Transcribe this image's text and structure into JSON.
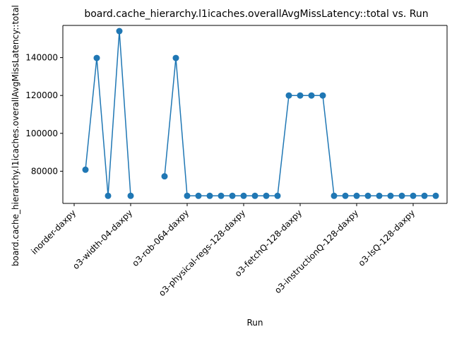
{
  "chart_data": {
    "type": "line",
    "title": "board.cache_hierarchy.l1icaches.overallAvgMissLatency::total vs. Run",
    "xlabel": "Run",
    "ylabel": "board.cache_hierarchy.l1icaches.overallAvgMissLatency::total",
    "y_ticks": [
      80000,
      100000,
      120000,
      140000
    ],
    "y_tick_labels": [
      "80000",
      "100000",
      "120000",
      "140000"
    ],
    "ylim": [
      63000,
      157000
    ],
    "xlim": [
      -1,
      33
    ],
    "x_ticks": [
      0,
      5,
      10,
      15,
      20,
      25,
      30
    ],
    "x_tick_labels": [
      "inorder-daxpy",
      "o3-width-04-daxpy",
      "o3-rob-064-daxpy",
      "o3-physical-regs-128-daxpy",
      "o3-fetchQ-128-daxpy",
      "o3-instructionQ-128-daxpy",
      "o3-lsQ-128-daxpy"
    ],
    "grid": false,
    "legend": "none",
    "color": "#1f77b4",
    "series": [
      {
        "x": [
          1,
          2,
          3,
          4,
          5,
          6,
          8,
          9,
          10,
          11,
          12,
          13,
          14,
          15,
          16,
          17,
          18,
          19,
          20,
          21,
          22,
          23,
          24,
          25,
          26,
          27,
          28,
          29,
          30,
          31,
          32
        ],
        "values": [
          80800,
          139800,
          67000,
          154000,
          67000,
          null,
          77300,
          139800,
          67000,
          67000,
          67000,
          67000,
          67000,
          67000,
          67000,
          67000,
          67000,
          120000,
          120000,
          120000,
          120000,
          67000,
          67000,
          67000,
          67000,
          67000,
          67000,
          67000,
          67000,
          67000,
          67000
        ]
      }
    ]
  }
}
